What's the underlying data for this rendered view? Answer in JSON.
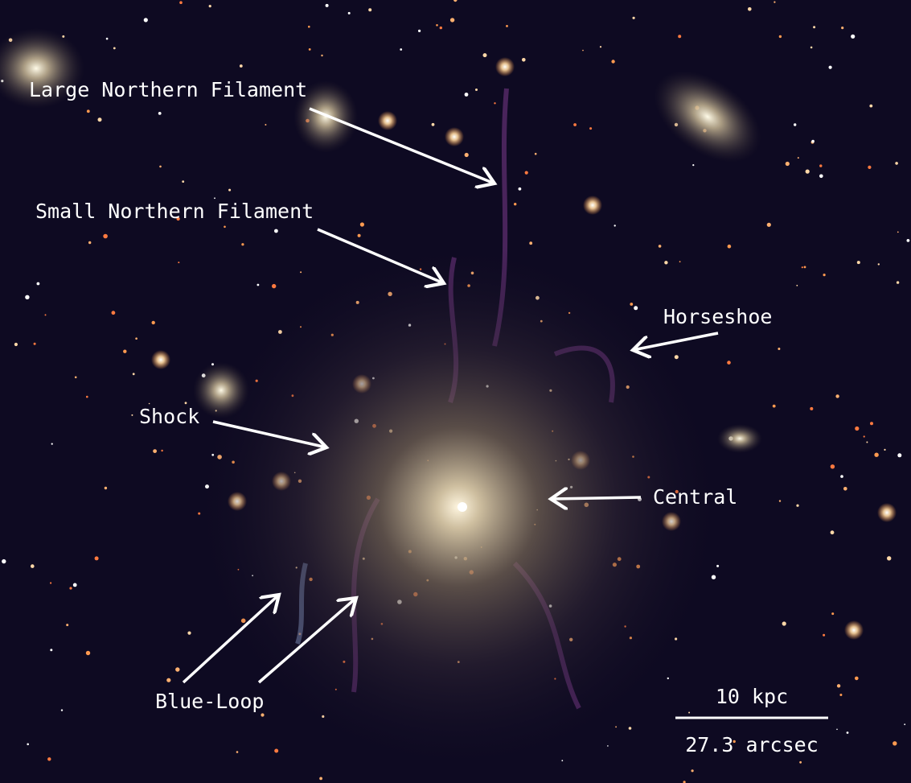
{
  "annotations": [
    {
      "label": "Large Northern Filament"
    },
    {
      "label": "Small Northern Filament"
    },
    {
      "label": "Horseshoe"
    },
    {
      "label": "Shock"
    },
    {
      "label": "Central"
    },
    {
      "label": "Blue-Loop"
    }
  ],
  "scale_bar": {
    "top_label": "10 kpc",
    "bottom_label": "27.3 arcsec"
  }
}
